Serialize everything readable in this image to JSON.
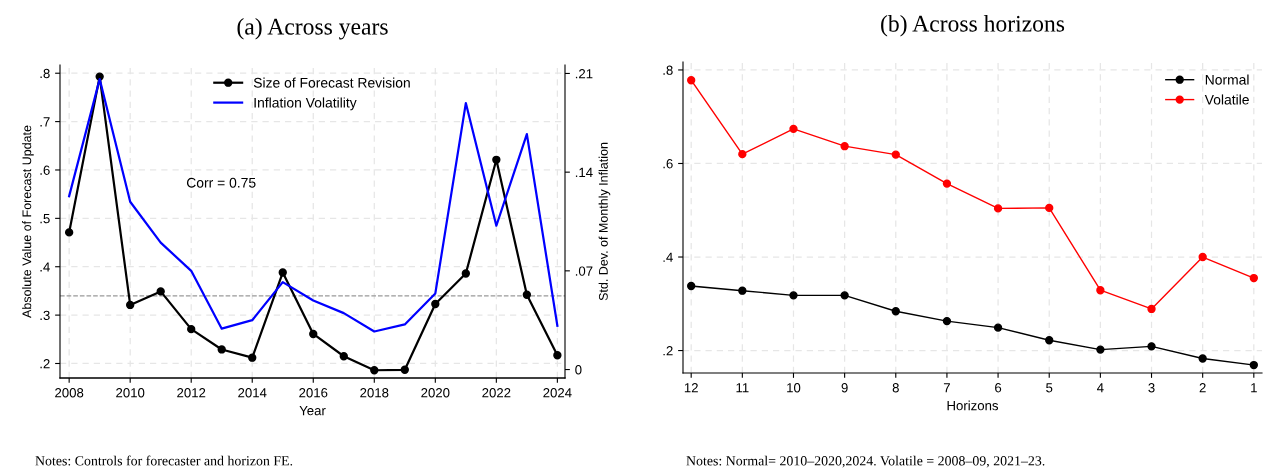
{
  "chart_data": [
    {
      "type": "line",
      "title": "(a) Across years",
      "xlabel": "Year",
      "ylabel": "Absolute Value of Forecast Update",
      "y2label": "Std. Dev. of Monthly Inflation",
      "x": [
        2008,
        2009,
        2010,
        2011,
        2012,
        2013,
        2014,
        2015,
        2016,
        2017,
        2018,
        2019,
        2020,
        2021,
        2022,
        2023,
        2024
      ],
      "series": [
        {
          "name": "Size of Forecast Revision",
          "color": "#000000",
          "marker": "circle",
          "values": [
            0.471,
            0.793,
            0.321,
            0.349,
            0.271,
            0.229,
            0.212,
            0.388,
            0.261,
            0.215,
            0.186,
            0.187,
            0.323,
            0.386,
            0.621,
            0.342,
            0.217
          ]
        },
        {
          "name": "Inflation Volatility",
          "color": "#0000ff",
          "marker": "none",
          "axis": "y2",
          "values": [
            0.123,
            0.206,
            0.119,
            0.09,
            0.07,
            0.029,
            0.035,
            0.062,
            0.049,
            0.04,
            0.027,
            0.032,
            0.054,
            0.189,
            0.102,
            0.167,
            0.031
          ]
        }
      ],
      "xlim": [
        2007.7,
        2024.25
      ],
      "xticks": [
        2008,
        2010,
        2012,
        2014,
        2016,
        2018,
        2020,
        2022,
        2024
      ],
      "ylim": [
        0.17,
        0.817
      ],
      "yticks": [
        {
          "value": 0.2,
          "label": ".2"
        },
        {
          "value": 0.3,
          "label": ".3"
        },
        {
          "value": 0.4,
          "label": ".4"
        },
        {
          "value": 0.5,
          "label": ".5"
        },
        {
          "value": 0.6,
          "label": ".6"
        },
        {
          "value": 0.7,
          "label": ".7"
        },
        {
          "value": 0.8,
          "label": ".8"
        }
      ],
      "y2lim": [
        -0.006,
        0.216
      ],
      "y2ticks": [
        0,
        {
          "value": 0.07,
          "label": ".07"
        },
        {
          "value": 0.14,
          "label": ".14"
        },
        {
          "value": 0.21,
          "label": ".21"
        }
      ],
      "ref_lines": [
        {
          "axis": "y",
          "value": 0.34,
          "color": "#999999",
          "line_style": "dashed"
        }
      ],
      "annotations": [
        "Corr = 0.75",
        "Notes: Controls for forecaster and horizon FE."
      ],
      "grid": true,
      "legend": "top"
    },
    {
      "type": "line",
      "title": "(b) Across horizons",
      "xlabel": "Horizons",
      "categories": [
        "12",
        "11",
        "10",
        "9",
        "8",
        "7",
        "6",
        "5",
        "4",
        "3",
        "2",
        "1"
      ],
      "series": [
        {
          "name": "Normal",
          "color": "#000000",
          "marker": "circle",
          "values": [
            0.338,
            0.328,
            0.318,
            0.318,
            0.284,
            0.263,
            0.249,
            0.222,
            0.202,
            0.209,
            0.183,
            0.169
          ]
        },
        {
          "name": "Volatile",
          "color": "#ff0000",
          "marker": "circle",
          "values": [
            0.778,
            0.62,
            0.674,
            0.637,
            0.619,
            0.557,
            0.504,
            0.505,
            0.329,
            0.289,
            0.4,
            0.355
          ]
        }
      ],
      "ylim": [
        0.152,
        0.817
      ],
      "yticks": [
        {
          "value": 0.2,
          "label": ".2"
        },
        {
          "value": 0.4,
          "label": ".4"
        },
        {
          "value": 0.6,
          "label": ".6"
        },
        {
          "value": 0.8,
          "label": ".8"
        }
      ],
      "annotations": [
        "Notes: Normal= 2010–2020,2024. Volatile = 2008–09, 2021–23."
      ],
      "grid": true,
      "legend": "top right"
    }
  ]
}
